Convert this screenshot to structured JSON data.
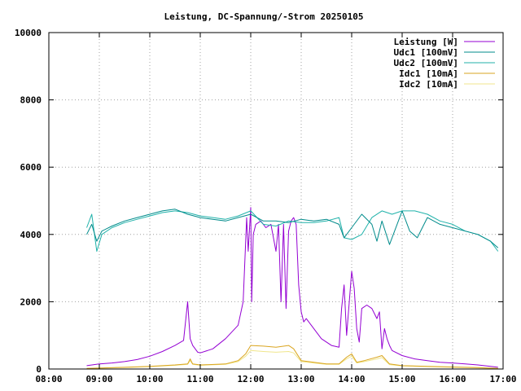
{
  "chart_data": {
    "type": "line",
    "title": "Leistung, DC-Spannung/-Strom 20250105",
    "xlabel": "",
    "ylabel": "",
    "x_unit": "time of day (hours)",
    "xlim": [
      8.0,
      17.0
    ],
    "ylim": [
      0,
      10000
    ],
    "x_ticks": [
      {
        "value": 8,
        "label": "08:00"
      },
      {
        "value": 9,
        "label": "09:00"
      },
      {
        "value": 10,
        "label": "10:00"
      },
      {
        "value": 11,
        "label": "11:00"
      },
      {
        "value": 12,
        "label": "12:00"
      },
      {
        "value": 13,
        "label": "13:00"
      },
      {
        "value": 14,
        "label": "14:00"
      },
      {
        "value": 15,
        "label": "15:00"
      },
      {
        "value": 16,
        "label": "16:00"
      },
      {
        "value": 17,
        "label": "17:00"
      }
    ],
    "y_ticks": [
      {
        "value": 0,
        "label": "0"
      },
      {
        "value": 2000,
        "label": "2000"
      },
      {
        "value": 4000,
        "label": "4000"
      },
      {
        "value": 6000,
        "label": "6000"
      },
      {
        "value": 8000,
        "label": "8000"
      },
      {
        "value": 10000,
        "label": "10000"
      }
    ],
    "grid": true,
    "legend_position": "top-right",
    "series": [
      {
        "name": "Leistung [W]",
        "color": "#9400d3",
        "x": [
          8.75,
          9.0,
          9.25,
          9.5,
          9.75,
          10.0,
          10.25,
          10.5,
          10.67,
          10.75,
          10.8,
          10.85,
          10.95,
          11.0,
          11.25,
          11.5,
          11.75,
          11.85,
          11.92,
          11.95,
          12.0,
          12.02,
          12.05,
          12.1,
          12.2,
          12.3,
          12.4,
          12.5,
          12.55,
          12.6,
          12.65,
          12.7,
          12.75,
          12.8,
          12.85,
          12.9,
          12.95,
          13.0,
          13.05,
          13.1,
          13.2,
          13.4,
          13.6,
          13.75,
          13.8,
          13.85,
          13.9,
          14.0,
          14.05,
          14.1,
          14.15,
          14.2,
          14.3,
          14.4,
          14.5,
          14.55,
          14.6,
          14.65,
          14.7,
          14.75,
          14.8,
          15.0,
          15.25,
          15.5,
          15.75,
          16.0,
          16.25,
          16.5,
          16.75,
          16.9
        ],
        "y": [
          100,
          150,
          180,
          220,
          280,
          380,
          520,
          700,
          850,
          2000,
          900,
          700,
          500,
          480,
          600,
          900,
          1300,
          2000,
          4500,
          3500,
          4800,
          2000,
          4000,
          4300,
          4400,
          4200,
          4300,
          3500,
          4300,
          2000,
          4300,
          1800,
          4100,
          4400,
          4500,
          4300,
          2500,
          1700,
          1400,
          1500,
          1300,
          900,
          700,
          650,
          1800,
          2500,
          1000,
          2900,
          2400,
          1200,
          800,
          1800,
          1900,
          1800,
          1500,
          1700,
          600,
          1200,
          900,
          700,
          550,
          400,
          300,
          250,
          200,
          180,
          150,
          120,
          80,
          50
        ]
      },
      {
        "name": "Udc1 [100mV]",
        "color": "#008b8b",
        "x": [
          8.75,
          8.85,
          8.95,
          9.05,
          9.25,
          9.5,
          9.75,
          10.0,
          10.25,
          10.5,
          10.75,
          11.0,
          11.25,
          11.5,
          11.75,
          12.0,
          12.25,
          12.5,
          12.75,
          13.0,
          13.25,
          13.5,
          13.75,
          13.85,
          14.0,
          14.2,
          14.4,
          14.5,
          14.6,
          14.75,
          14.9,
          15.0,
          15.15,
          15.3,
          15.5,
          15.75,
          16.0,
          16.25,
          16.5,
          16.75,
          16.9
        ],
        "y": [
          4000,
          4300,
          3800,
          4100,
          4250,
          4400,
          4500,
          4600,
          4700,
          4750,
          4600,
          4500,
          4450,
          4400,
          4500,
          4600,
          4400,
          4400,
          4350,
          4450,
          4400,
          4450,
          4300,
          3900,
          4200,
          4600,
          4300,
          3800,
          4400,
          3700,
          4300,
          4700,
          4100,
          3900,
          4500,
          4300,
          4200,
          4100,
          4000,
          3800,
          3600
        ]
      },
      {
        "name": "Udc2 [100mV]",
        "color": "#20b2aa",
        "x": [
          8.75,
          8.85,
          8.95,
          9.05,
          9.25,
          9.5,
          9.75,
          10.0,
          10.25,
          10.5,
          10.75,
          11.0,
          11.25,
          11.5,
          11.75,
          12.0,
          12.25,
          12.5,
          12.75,
          13.0,
          13.25,
          13.5,
          13.75,
          13.85,
          14.0,
          14.2,
          14.4,
          14.6,
          14.8,
          15.0,
          15.25,
          15.5,
          15.75,
          16.0,
          16.25,
          16.5,
          16.75,
          16.9
        ],
        "y": [
          4200,
          4600,
          3500,
          4000,
          4200,
          4350,
          4450,
          4550,
          4650,
          4700,
          4650,
          4550,
          4500,
          4450,
          4550,
          4700,
          4300,
          4250,
          4400,
          4350,
          4350,
          4400,
          4500,
          3900,
          3850,
          4000,
          4500,
          4700,
          4600,
          4700,
          4700,
          4600,
          4400,
          4300,
          4100,
          4000,
          3800,
          3500
        ]
      },
      {
        "name": "Idc1 [10mA]",
        "color": "#daa520",
        "x": [
          8.75,
          9.0,
          9.5,
          10.0,
          10.5,
          10.75,
          10.8,
          10.85,
          11.0,
          11.5,
          11.75,
          11.9,
          12.0,
          12.25,
          12.5,
          12.75,
          12.85,
          13.0,
          13.25,
          13.5,
          13.75,
          13.9,
          14.0,
          14.1,
          14.25,
          14.5,
          14.6,
          14.75,
          15.0,
          15.5,
          16.0,
          16.5,
          16.9
        ],
        "y": [
          20,
          30,
          50,
          80,
          120,
          150,
          300,
          150,
          120,
          150,
          250,
          450,
          700,
          680,
          650,
          700,
          600,
          250,
          200,
          150,
          150,
          350,
          450,
          200,
          250,
          350,
          400,
          150,
          100,
          80,
          60,
          40,
          20
        ]
      },
      {
        "name": "Idc2 [10mA]",
        "color": "#f0e68c",
        "x": [
          8.75,
          9.0,
          9.5,
          10.0,
          10.5,
          10.75,
          10.8,
          10.85,
          11.0,
          11.5,
          11.75,
          11.9,
          12.0,
          12.25,
          12.5,
          12.75,
          12.85,
          13.0,
          13.25,
          13.5,
          13.75,
          13.9,
          14.0,
          14.1,
          14.25,
          14.5,
          14.6,
          14.75,
          15.0,
          15.5,
          16.0,
          16.5,
          16.9
        ],
        "y": [
          15,
          25,
          45,
          70,
          110,
          140,
          250,
          140,
          110,
          140,
          220,
          380,
          550,
          520,
          500,
          520,
          480,
          220,
          180,
          140,
          140,
          300,
          380,
          180,
          220,
          300,
          340,
          130,
          90,
          70,
          50,
          35,
          15
        ]
      }
    ]
  }
}
